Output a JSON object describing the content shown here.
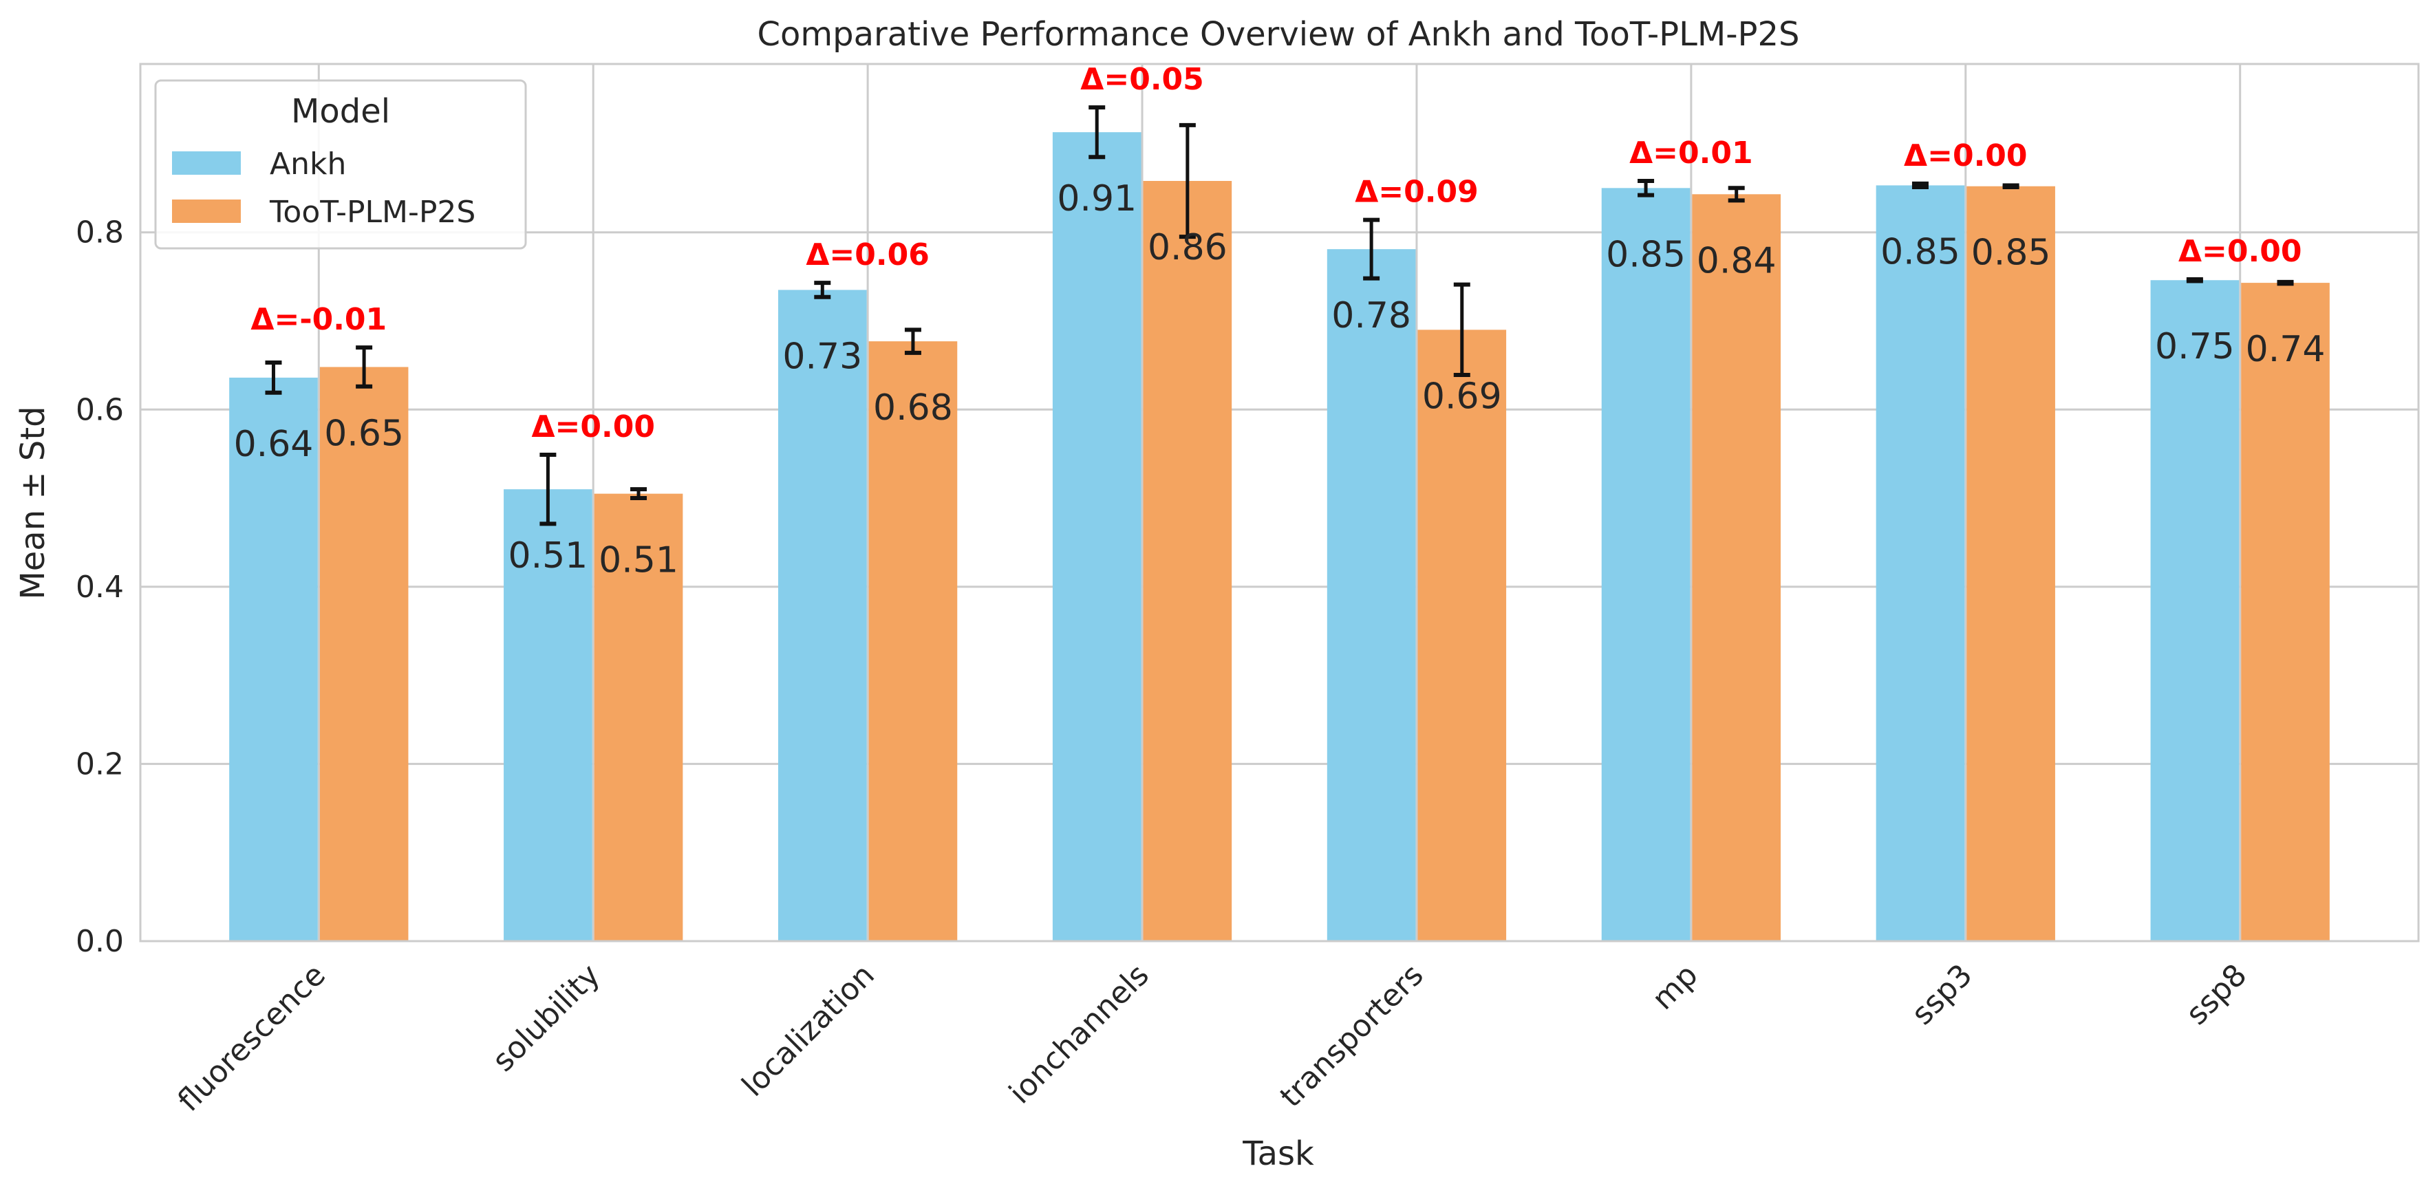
{
  "chart_data": {
    "type": "bar",
    "title": "Comparative Performance Overview of Ankh and TooT-PLM-P2S",
    "xlabel": "Task",
    "ylabel": "Mean ± Std",
    "ylim": [
      0,
      0.99
    ],
    "yticks": [
      0.0,
      0.2,
      0.4,
      0.6,
      0.8
    ],
    "ytick_labels": [
      "0.0",
      "0.2",
      "0.4",
      "0.6",
      "0.8"
    ],
    "grid": true,
    "legend": {
      "title": "Model",
      "placement": "top-left"
    },
    "categories": [
      "fluorescence",
      "solubility",
      "localization",
      "ionchannels",
      "transporters",
      "mp",
      "ssp3",
      "ssp8"
    ],
    "series": [
      {
        "name": "Ankh",
        "color": "#87ceeb",
        "values": [
          0.636,
          0.51,
          0.735,
          0.913,
          0.781,
          0.85,
          0.853,
          0.746
        ],
        "std": [
          0.017,
          0.039,
          0.008,
          0.028,
          0.033,
          0.008,
          0.002,
          0.001
        ],
        "labels": [
          "0.64",
          "0.51",
          "0.73",
          "0.91",
          "0.78",
          "0.85",
          "0.85",
          "0.75"
        ]
      },
      {
        "name": "TooT-PLM-P2S",
        "color": "#f4a460",
        "values": [
          0.648,
          0.505,
          0.677,
          0.858,
          0.69,
          0.843,
          0.852,
          0.743
        ],
        "std": [
          0.022,
          0.005,
          0.013,
          0.063,
          0.051,
          0.007,
          0.001,
          0.001
        ],
        "labels": [
          "0.65",
          "0.51",
          "0.68",
          "0.86",
          "0.69",
          "0.84",
          "0.85",
          "0.74"
        ]
      }
    ],
    "annotations": {
      "color": "#ff0000",
      "deltas": [
        "Δ=-0.01",
        "Δ=0.00",
        "Δ=0.06",
        "Δ=0.05",
        "Δ=0.09",
        "Δ=0.01",
        "Δ=0.00",
        "Δ=0.00"
      ]
    }
  }
}
